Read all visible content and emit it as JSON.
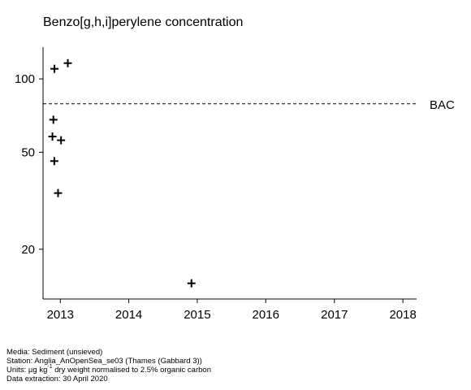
{
  "chart_data": {
    "type": "scatter",
    "title": "Benzo[g,h,i]perylene concentration",
    "xlabel": "",
    "ylabel": "",
    "y_scale": "log",
    "xlim": [
      "2012-10-01",
      "2018-03-15"
    ],
    "ylim": [
      12.5,
      135
    ],
    "x_ticks": [
      "2013",
      "2014",
      "2015",
      "2016",
      "2017",
      "2018"
    ],
    "y_ticks": [
      20,
      50,
      100
    ],
    "grid": false,
    "marker": "+",
    "reference_line": {
      "label": "BAC",
      "value": 79,
      "style": "dashed"
    },
    "points": [
      {
        "x": "2012-12-01",
        "y": 110
      },
      {
        "x": "2013-02-10",
        "y": 116
      },
      {
        "x": "2012-11-25",
        "y": 68
      },
      {
        "x": "2012-11-20",
        "y": 58
      },
      {
        "x": "2013-01-05",
        "y": 56
      },
      {
        "x": "2012-11-30",
        "y": 46
      },
      {
        "x": "2012-12-20",
        "y": 34
      },
      {
        "x": "2014-12-01",
        "y": 14.5
      }
    ]
  },
  "footer": {
    "media": "Media: Sediment (unsieved)",
    "station": "Station: Anglia_AnOpenSea_se03 (Thames (Gabbard 3))",
    "units_prefix": "Units:  µg kg",
    "units_sup": "-1",
    "units_suffix": " dry weight normalised to 2.5% organic carbon",
    "extraction": "Data extraction: 30 April 2020"
  }
}
